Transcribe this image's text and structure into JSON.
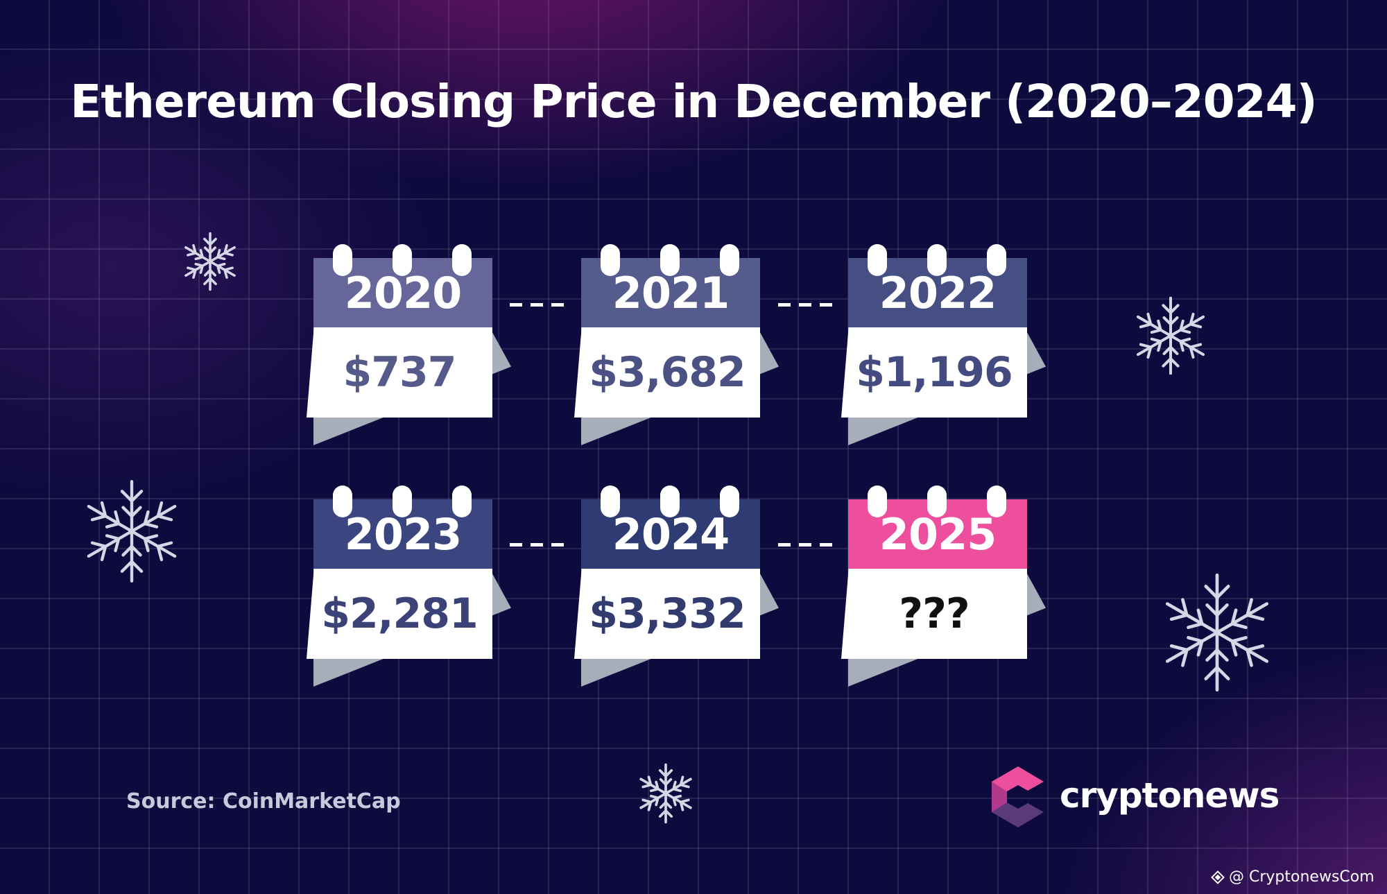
{
  "title": "Ethereum Closing Price in December (2020–2024)",
  "calendars": [
    {
      "year": "2020",
      "value": "$737",
      "header_color": "#66669a",
      "value_color": "#555a8a"
    },
    {
      "year": "2021",
      "value": "$3,682",
      "header_color": "#555b8d",
      "value_color": "#4b5182"
    },
    {
      "year": "2022",
      "value": "$1,196",
      "header_color": "#454f84",
      "value_color": "#444b80"
    },
    {
      "year": "2023",
      "value": "$2,281",
      "header_color": "#3b4680",
      "value_color": "#3a4277"
    },
    {
      "year": "2024",
      "value": "$3,332",
      "header_color": "#2f3b73",
      "value_color": "#323b6e"
    },
    {
      "year": "2025",
      "value": "???",
      "header_color": "#ee4f9c",
      "value_color": "#111111"
    }
  ],
  "source": "Source: CoinMarketCap",
  "brand": {
    "name": "cryptonews",
    "logo_colors": [
      "#ee4f9c",
      "#b23a8c",
      "#5b3a7c"
    ]
  },
  "handle": {
    "icon": "at-icon",
    "text": "@ CryptonewsCom"
  },
  "icons": {
    "decor": "snowflake-icon"
  }
}
